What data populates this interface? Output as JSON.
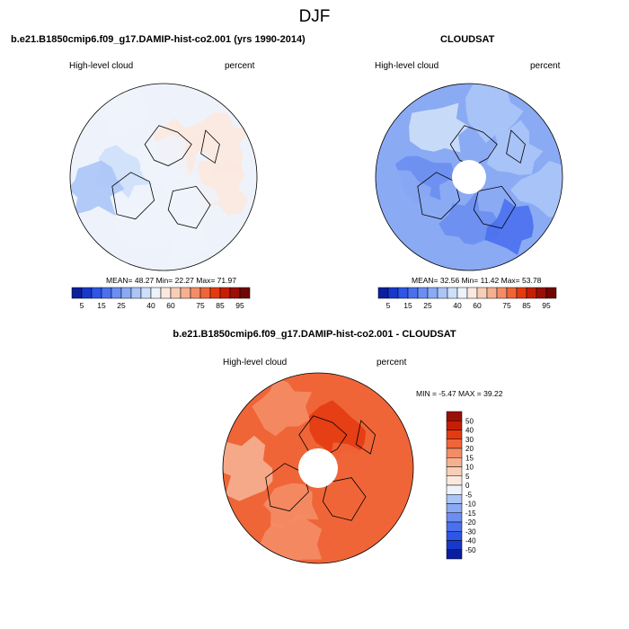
{
  "page_title": "DJF",
  "colors": {
    "land_outline": "#000000",
    "pole_hole": "#ffffff"
  },
  "panels": {
    "model": {
      "title": "b.e21.B1850cmip6.f09_g17.DAMIP-hist-co2.001 (yrs 1990-2014)",
      "left_label": "High-level cloud",
      "right_label": "percent",
      "stats": {
        "mean_label": "MEAN=",
        "mean": "48.27",
        "min_label": "Min=",
        "min": "22.27",
        "max_label": "Max=",
        "max": "71.97"
      }
    },
    "obs": {
      "title": "CLOUDSAT",
      "left_label": "High-level cloud",
      "right_label": "percent",
      "stats": {
        "mean_label": "MEAN=",
        "mean": "32.56",
        "min_label": "Min=",
        "min": "11.42",
        "max_label": "Max=",
        "max": "53.78"
      }
    },
    "diff": {
      "title": "b.e21.B1850cmip6.f09_g17.DAMIP-hist-co2.001 - CLOUDSAT",
      "left_label": "High-level cloud",
      "right_label": "percent",
      "stats": {
        "min_label": "MIN =",
        "min": "-5.47",
        "max_label": "MAX =",
        "max": "39.22"
      }
    }
  },
  "chart_data": [
    {
      "type": "heatmap",
      "projection": "north polar stereographic",
      "title": "b.e21.B1850cmip6.f09_g17.DAMIP-hist-co2.001 (yrs 1990-2014)",
      "variable": "High-level cloud",
      "units": "percent",
      "mean": 48.27,
      "min": 22.27,
      "max": 71.97,
      "colorbar": {
        "orientation": "horizontal",
        "levels": [
          5,
          10,
          15,
          20,
          25,
          30,
          35,
          40,
          50,
          60,
          65,
          70,
          75,
          80,
          85,
          90,
          95
        ],
        "tick_labels": [
          "5",
          "15",
          "25",
          "40",
          "60",
          "75",
          "85",
          "95"
        ],
        "colors": [
          "#0a1f9e",
          "#1838cc",
          "#2e55e6",
          "#4a70ee",
          "#6a8ef1",
          "#8aaaf4",
          "#abc5f7",
          "#cde0fa",
          "#eef3fb",
          "#fbe9df",
          "#f8cfb6",
          "#f6b091",
          "#f48d66",
          "#ef6538",
          "#e43a12",
          "#c61e05",
          "#9a0f05",
          "#700604"
        ]
      },
      "regions": [
        {
          "lat": 70,
          "lon": 200,
          "value": 45
        },
        {
          "lat": 72,
          "lon": 280,
          "value": 38
        },
        {
          "lat": 60,
          "lon": 260,
          "value": 33
        },
        {
          "lat": 75,
          "lon": 30,
          "value": 54
        },
        {
          "lat": 62,
          "lon": 60,
          "value": 56
        },
        {
          "lat": 65,
          "lon": 100,
          "value": 52
        },
        {
          "lat": 75,
          "lon": 130,
          "value": 48
        },
        {
          "lat": 85,
          "lon": 0,
          "value": 47
        },
        {
          "lat": 58,
          "lon": 330,
          "value": 44
        },
        {
          "lat": 62,
          "lon": 160,
          "value": 44
        }
      ]
    },
    {
      "type": "heatmap",
      "projection": "north polar stereographic",
      "title": "CLOUDSAT",
      "variable": "High-level cloud",
      "units": "percent",
      "mean": 32.56,
      "min": 11.42,
      "max": 53.78,
      "colorbar": {
        "orientation": "horizontal",
        "levels": [
          5,
          10,
          15,
          20,
          25,
          30,
          35,
          40,
          50,
          60,
          65,
          70,
          75,
          80,
          85,
          90,
          95
        ],
        "tick_labels": [
          "5",
          "15",
          "25",
          "40",
          "60",
          "75",
          "85",
          "95"
        ],
        "colors": [
          "#0a1f9e",
          "#1838cc",
          "#2e55e6",
          "#4a70ee",
          "#6a8ef1",
          "#8aaaf4",
          "#abc5f7",
          "#cde0fa",
          "#eef3fb",
          "#fbe9df",
          "#f8cfb6",
          "#f6b091",
          "#f48d66",
          "#ef6538",
          "#e43a12",
          "#c61e05",
          "#9a0f05",
          "#700604"
        ]
      },
      "regions": [
        {
          "lat": 70,
          "lon": 270,
          "value": 22
        },
        {
          "lat": 60,
          "lon": 250,
          "value": 26
        },
        {
          "lat": 70,
          "lon": 180,
          "value": 20
        },
        {
          "lat": 62,
          "lon": 140,
          "value": 18
        },
        {
          "lat": 68,
          "lon": 60,
          "value": 30
        },
        {
          "lat": 60,
          "lon": 20,
          "value": 34
        },
        {
          "lat": 65,
          "lon": 330,
          "value": 36
        },
        {
          "lat": 58,
          "lon": 100,
          "value": 33
        }
      ]
    },
    {
      "type": "heatmap",
      "projection": "north polar stereographic",
      "title": "b.e21.B1850cmip6.f09_g17.DAMIP-hist-co2.001 - CLOUDSAT",
      "variable": "High-level cloud",
      "units": "percent",
      "min": -5.47,
      "max": 39.22,
      "colorbar": {
        "orientation": "vertical",
        "levels": [
          -50,
          -40,
          -30,
          -20,
          -15,
          -10,
          -5,
          0,
          5,
          10,
          15,
          20,
          30,
          40,
          50
        ],
        "tick_labels": [
          "50",
          "40",
          "30",
          "20",
          "15",
          "10",
          "5",
          "0",
          "-5",
          "-10",
          "-15",
          "-20",
          "-30",
          "-40",
          "-50"
        ],
        "colors": [
          "#0a1f9e",
          "#1838cc",
          "#2e55e6",
          "#4a70ee",
          "#6a8ef1",
          "#8aaaf4",
          "#abc5f7",
          "#eef3fb",
          "#fbe9df",
          "#f8cfb6",
          "#f6b091",
          "#f48d66",
          "#ef6538",
          "#e43a12",
          "#c61e05",
          "#9a0f05"
        ]
      },
      "regions": [
        {
          "lat": 72,
          "lon": 30,
          "value": 32
        },
        {
          "lat": 75,
          "lon": 90,
          "value": 28
        },
        {
          "lat": 70,
          "lon": 160,
          "value": 24
        },
        {
          "lat": 70,
          "lon": 220,
          "value": 18
        },
        {
          "lat": 60,
          "lon": 270,
          "value": 12
        },
        {
          "lat": 60,
          "lon": 330,
          "value": 17
        },
        {
          "lat": 55,
          "lon": 120,
          "value": 20
        },
        {
          "lat": 56,
          "lon": 200,
          "value": 16
        }
      ]
    }
  ]
}
